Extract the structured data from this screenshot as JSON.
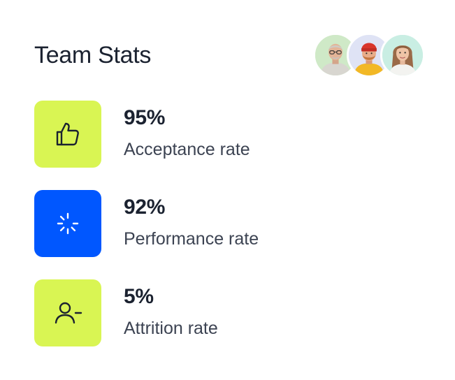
{
  "header": {
    "title": "Team Stats"
  },
  "team_avatars": [
    {
      "name": "avatar-1",
      "bg": "#cfe9c7"
    },
    {
      "name": "avatar-2",
      "bg": "#dfe3f5"
    },
    {
      "name": "avatar-3",
      "bg": "#c9eee3"
    }
  ],
  "stats": [
    {
      "value": "95%",
      "label": "Acceptance rate",
      "icon": "thumbs-up-icon",
      "tile_color": "#d9f553"
    },
    {
      "value": "92%",
      "label": "Performance rate",
      "icon": "loading-spinner-icon",
      "tile_color": "#0057ff"
    },
    {
      "value": "5%",
      "label": "Attrition rate",
      "icon": "user-minus-icon",
      "tile_color": "#d9f553"
    }
  ],
  "colors": {
    "lime_accent": "#d9f553",
    "blue_accent": "#0057ff",
    "text_primary": "#1b2230",
    "text_secondary": "#3c4352"
  }
}
